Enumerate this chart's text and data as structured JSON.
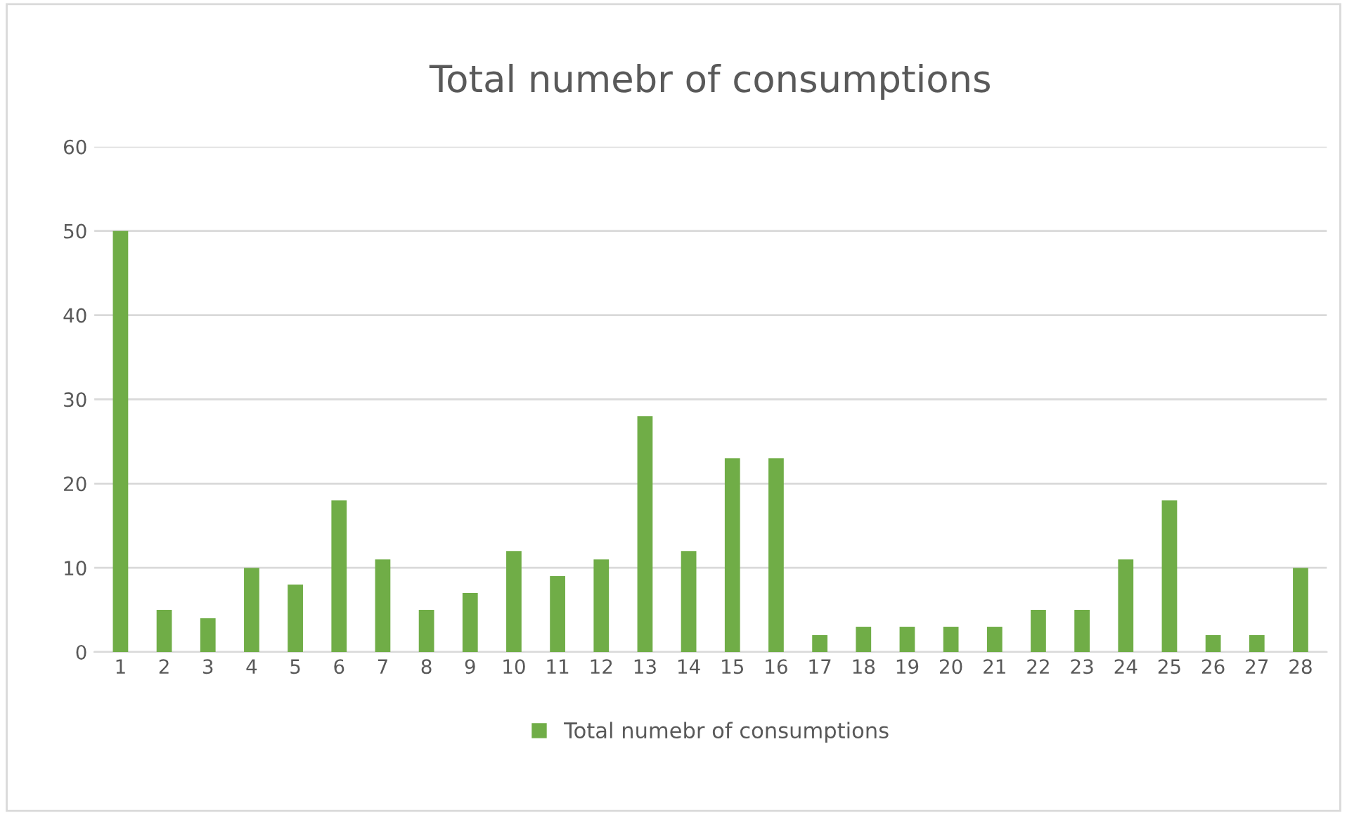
{
  "chart_data": {
    "type": "bar",
    "title": "Total numebr of consumptions",
    "categories": [
      "1",
      "2",
      "3",
      "4",
      "5",
      "6",
      "7",
      "8",
      "9",
      "10",
      "11",
      "12",
      "13",
      "14",
      "15",
      "16",
      "17",
      "18",
      "19",
      "20",
      "21",
      "22",
      "23",
      "24",
      "25",
      "26",
      "27",
      "28"
    ],
    "series": [
      {
        "name": "Total numebr of consumptions",
        "color": "#70ad47",
        "values": [
          50,
          5,
          4,
          10,
          8,
          18,
          11,
          5,
          7,
          12,
          9,
          11,
          28,
          12,
          23,
          23,
          2,
          3,
          3,
          3,
          3,
          5,
          5,
          11,
          18,
          2,
          2,
          10
        ]
      }
    ],
    "ylim": [
      0,
      60
    ],
    "yticks": [
      0,
      10,
      20,
      30,
      40,
      50,
      60
    ],
    "grid": "y",
    "legend": "bottom"
  }
}
